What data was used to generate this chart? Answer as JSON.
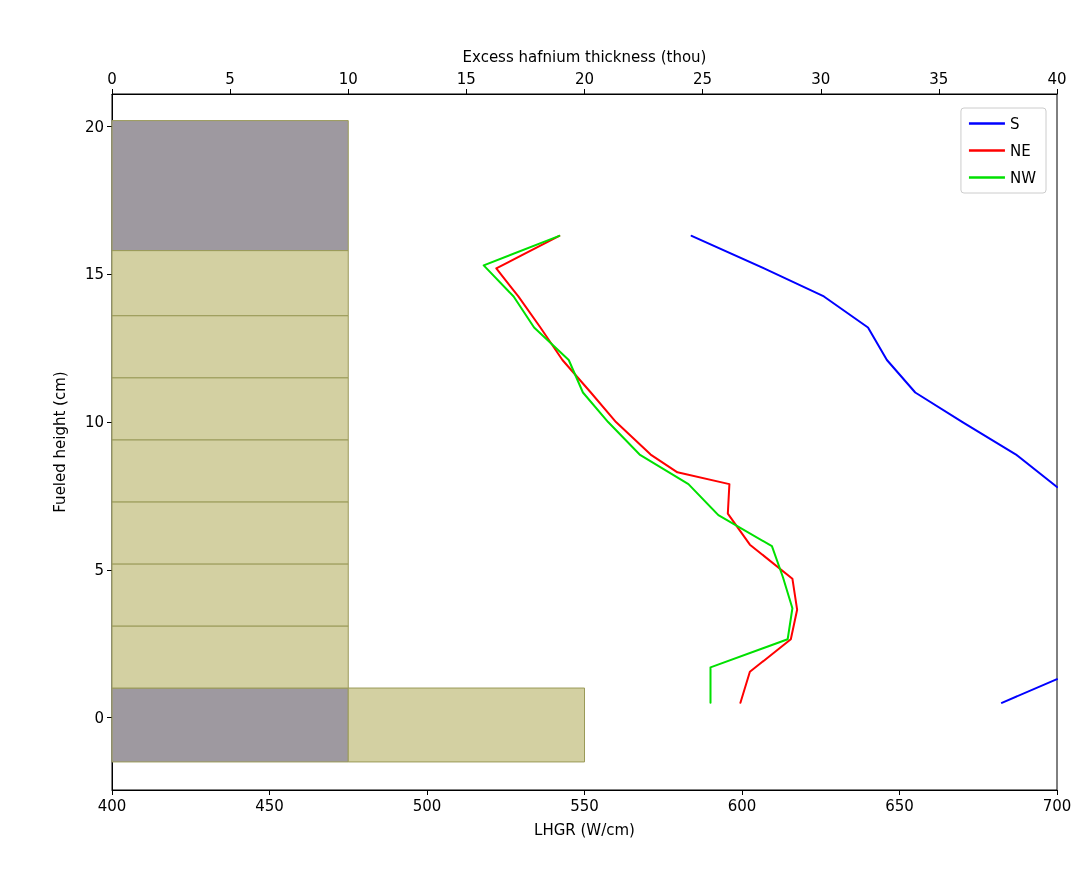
{
  "chart_data": {
    "type": "line",
    "xlabel": "LHGR (W/cm)",
    "x2label": "Excess hafnium thickness (thou)",
    "ylabel": "Fueled height (cm)",
    "xlim": [
      400,
      700
    ],
    "xticks": [
      400,
      450,
      500,
      550,
      600,
      650,
      700
    ],
    "x2lim": [
      0,
      40
    ],
    "x2ticks": [
      0,
      5,
      10,
      15,
      20,
      25,
      30,
      35,
      40
    ],
    "ylim": [
      -2.45,
      21.1
    ],
    "yticks": [
      0,
      5,
      10,
      15,
      20
    ],
    "grid": false,
    "legend": "top right",
    "marker": "none",
    "line_style": "solid",
    "series": [
      {
        "type": "bar",
        "axis": "x2",
        "color": "#9e99a0",
        "x": [
          5,
          5
        ],
        "base": [
          15.8,
          -1.5
        ],
        "values": [
          4.4,
          2.5
        ]
      },
      {
        "type": "bar",
        "axis": "x2",
        "color": "#d3d0a2",
        "x": [
          5
        ],
        "base": [
          1.0
        ],
        "values": [
          2.1
        ]
      },
      {
        "type": "bar",
        "axis": "x2",
        "color": "#d3d0a2",
        "x": [
          5
        ],
        "base": [
          3.1
        ],
        "values": [
          2.1
        ]
      },
      {
        "type": "bar",
        "axis": "x2",
        "color": "#d3d0a2",
        "x": [
          5
        ],
        "base": [
          5.2
        ],
        "values": [
          2.1
        ]
      },
      {
        "type": "bar",
        "axis": "x2",
        "color": "#d3d0a2",
        "x": [
          5
        ],
        "base": [
          7.3
        ],
        "values": [
          2.1
        ]
      },
      {
        "type": "bar",
        "axis": "x2",
        "color": "#d3d0a2",
        "x": [
          5
        ],
        "base": [
          9.4
        ],
        "values": [
          2.1
        ]
      },
      {
        "type": "bar",
        "axis": "x2",
        "color": "#d3d0a2",
        "x": [
          5
        ],
        "base": [
          11.5
        ],
        "values": [
          2.1
        ]
      },
      {
        "type": "bar",
        "axis": "x2",
        "color": "#d3d0a2",
        "x": [
          5
        ],
        "base": [
          13.6
        ],
        "values": [
          2.2
        ]
      },
      {
        "type": "bar",
        "axis": "x2",
        "color": "#d3d0a2",
        "x": [
          15
        ],
        "base": [
          -1.5
        ],
        "values": [
          2.5
        ]
      },
      {
        "name": "S",
        "color": "#0000ff",
        "x": [
          584,
          607,
          626,
          640,
          646,
          655,
          670,
          687,
          700,
          null,
          682.5,
          700
        ],
        "values": [
          16.3,
          15.2,
          14.25,
          13.2,
          12.1,
          11.0,
          10.0,
          8.9,
          7.8,
          null,
          0.5,
          1.3
        ]
      },
      {
        "name": "NE",
        "color": "#ff0000",
        "x": [
          542,
          522,
          529,
          536,
          543,
          552,
          560,
          571,
          579.5,
          596,
          595.5,
          602.5,
          616,
          617.5,
          615.5,
          602.5,
          599.5
        ],
        "values": [
          16.3,
          15.2,
          14.25,
          13.2,
          12.1,
          11.0,
          10.0,
          8.9,
          8.3,
          7.9,
          6.9,
          5.85,
          4.7,
          3.65,
          2.65,
          1.55,
          0.5
        ]
      },
      {
        "name": "NW",
        "color": "#00e000",
        "x": [
          542,
          518,
          527.5,
          534,
          545,
          549.5,
          557.5,
          567.5,
          583,
          592.5,
          609.5,
          613,
          616,
          614.5,
          590,
          590
        ],
        "values": [
          16.3,
          15.3,
          14.25,
          13.2,
          12.1,
          11.0,
          10.0,
          8.9,
          7.9,
          6.85,
          5.8,
          4.75,
          3.7,
          2.65,
          1.7,
          0.5
        ]
      }
    ]
  }
}
